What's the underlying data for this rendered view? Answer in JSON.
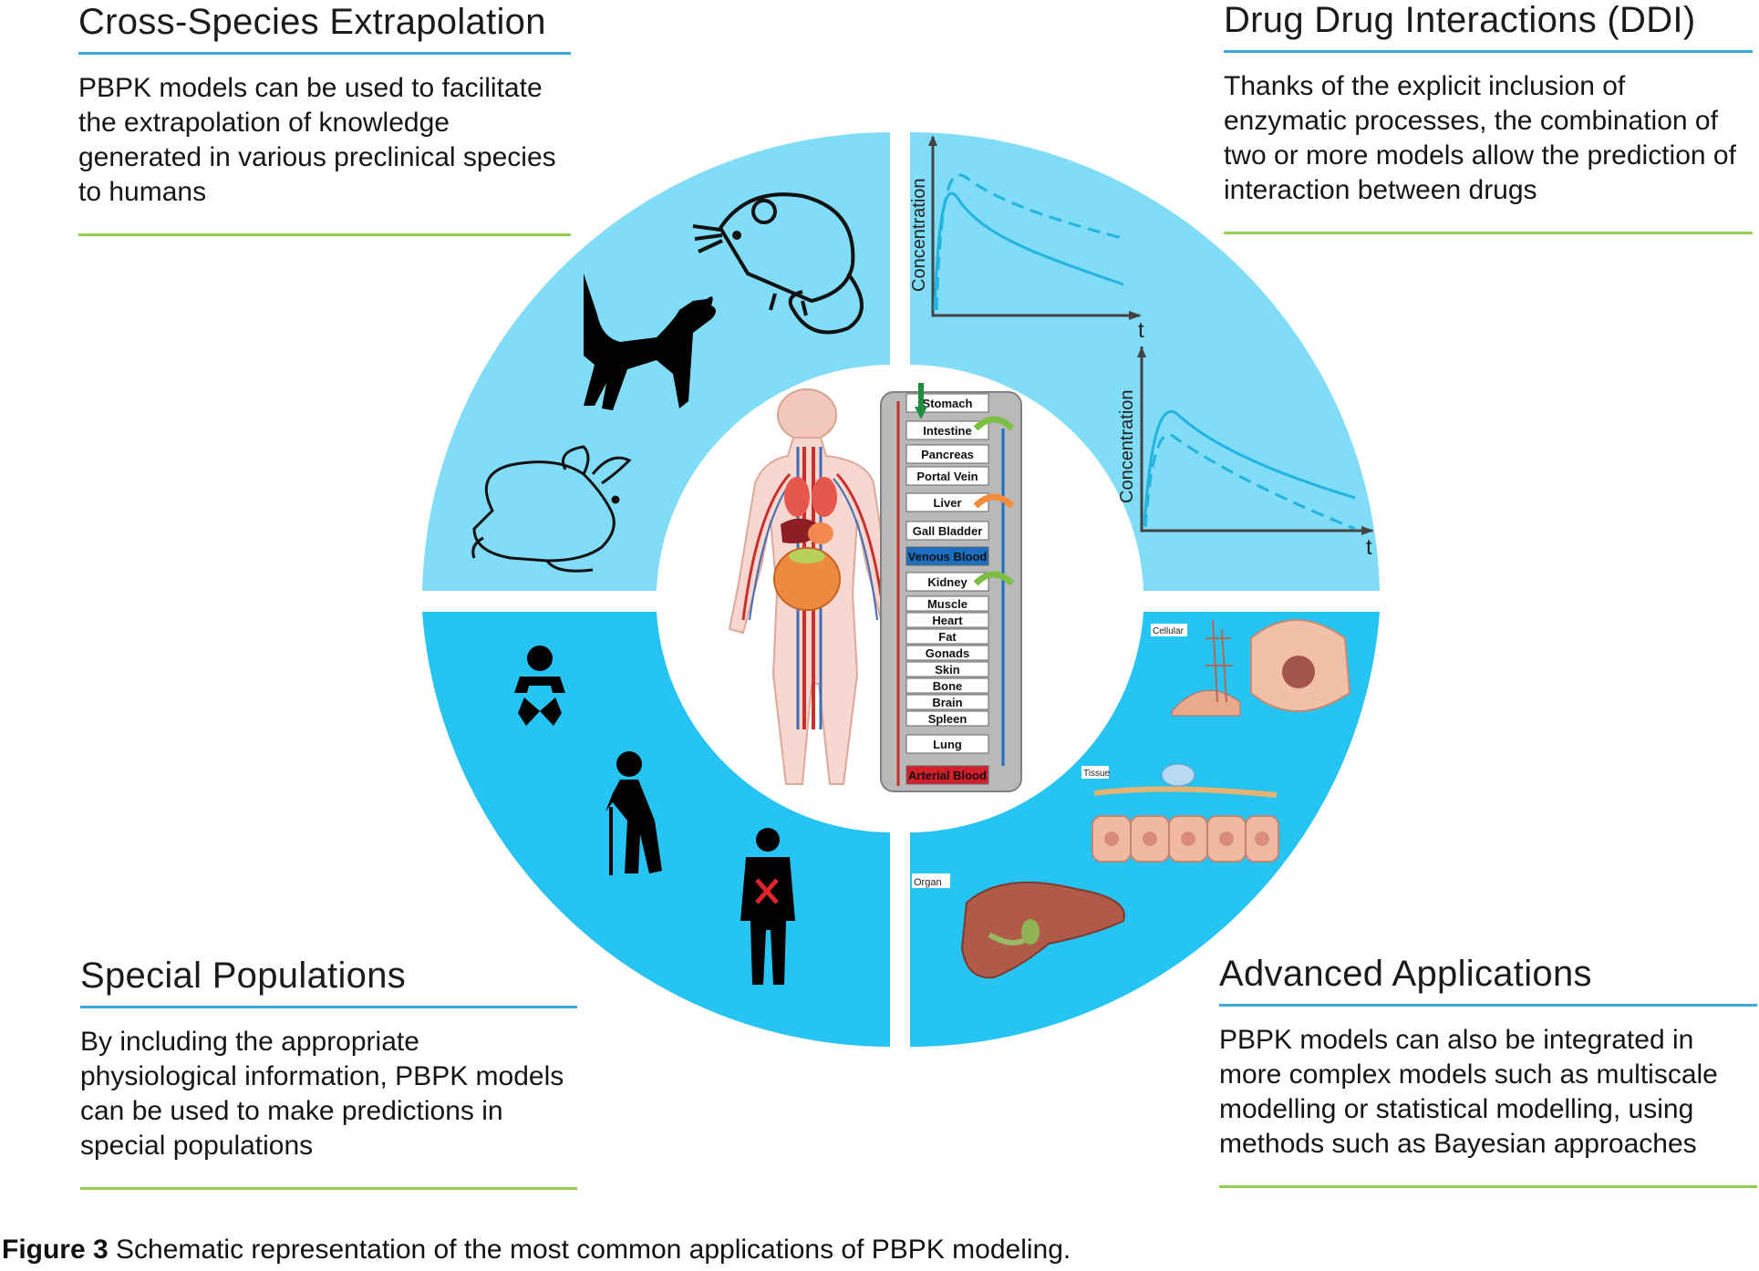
{
  "panels": {
    "cross_species": {
      "title": "Cross-Species Extrapolation",
      "text": "PBPK models can be used to facilitate the extrapolation of knowledge generated in various preclinical species to humans"
    },
    "ddi": {
      "title": "Drug Drug Interactions (DDI)",
      "text": "Thanks of the explicit inclusion of enzymatic processes, the combination of two or more models allow the prediction of interaction between drugs"
    },
    "special_populations": {
      "title": "Special Populations",
      "text": "By including the appropriate physiological information, PBPK models can be used to make predictions in special populations"
    },
    "advanced": {
      "title": "Advanced Applications",
      "text": "PBPK models can also be integrated in more complex models such as multiscale modelling or statistical modelling, using methods such as Bayesian approaches"
    }
  },
  "ddi_plots": {
    "ylabel": "Concentration",
    "xlabel": "t"
  },
  "scale_labels": {
    "cellular": "Cellular",
    "tissue": "Tissue",
    "organ": "Organ"
  },
  "compartments": [
    "Stomach",
    "Intestine",
    "Pancreas",
    "Portal Vein",
    "Liver",
    "Gall Bladder",
    "Venous Blood",
    "Kidney",
    "Muscle",
    "Heart",
    "Fat",
    "Gonads",
    "Skin",
    "Bone",
    "Brain",
    "Spleen",
    "Lung",
    "Arterial Blood"
  ],
  "caption": {
    "label": "Figure 3",
    "text": " Schematic representation of the most common applications of PBPK modeling."
  },
  "colors": {
    "ring_top": "#81dcf7",
    "ring_bottom": "#26c4f2",
    "curve": "#22b3de",
    "title_rule": "#38a9d9",
    "text_rule": "#8fd14f",
    "venous": "#1a6fc2",
    "arterial": "#d41e2a"
  }
}
